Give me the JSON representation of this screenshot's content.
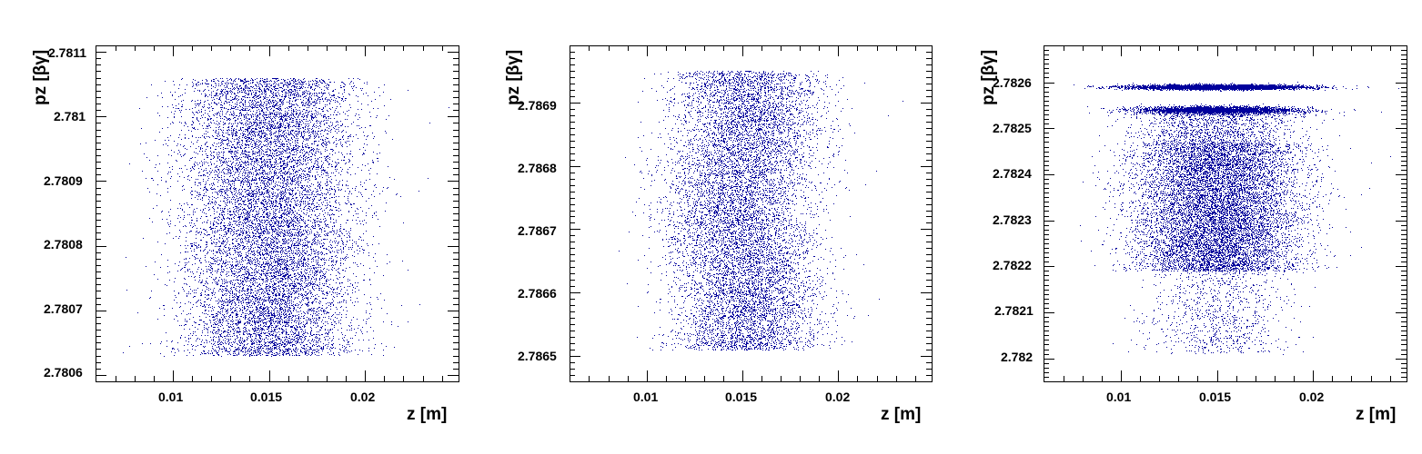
{
  "chart_data": [
    {
      "type": "scatter",
      "title": "",
      "xlabel": "z [m]",
      "ylabel": "pz [βγ]",
      "xlim": [
        0.00598,
        0.02487
      ],
      "ylim": [
        2.78059,
        2.78111
      ],
      "x_ticks": [
        "0.01",
        "0.015",
        "0.02"
      ],
      "x_tick_values": [
        0.01,
        0.015,
        0.02
      ],
      "y_ticks": [
        "2.7806",
        "2.7807",
        "2.7808",
        "2.7809",
        "2.781",
        "2.7811"
      ],
      "y_tick_values": [
        2.7806,
        2.7807,
        2.7808,
        2.7809,
        2.781,
        2.7811
      ],
      "grid": false,
      "marker_color": "#00009c",
      "distribution": {
        "core_z_range": [
          0.0115,
          0.0185
        ],
        "halo_z_range": [
          0.0085,
          0.0205
        ],
        "pz_range": [
          2.78063,
          2.78106
        ],
        "shape": "uniform rectangular band, dense central core with sparse edges in z"
      }
    },
    {
      "type": "scatter",
      "title": "",
      "xlabel": "z [m]",
      "ylabel": "pz [βγ]",
      "xlim": [
        0.00598,
        0.02487
      ],
      "ylim": [
        2.78646,
        2.78699
      ],
      "x_ticks": [
        "0.01",
        "0.015",
        "0.02"
      ],
      "x_tick_values": [
        0.01,
        0.015,
        0.02
      ],
      "y_ticks": [
        "2.7865",
        "2.7866",
        "2.7867",
        "2.7868",
        "2.7869"
      ],
      "y_tick_values": [
        2.7865,
        2.7866,
        2.7867,
        2.7868,
        2.7869
      ],
      "grid": false,
      "marker_color": "#00009c",
      "distribution": {
        "core_z_range": [
          0.012,
          0.018
        ],
        "halo_z_range": [
          0.0085,
          0.0205
        ],
        "pz_range": [
          2.78651,
          2.78695
        ],
        "shape": "rectangular band with slightly wavy edges"
      }
    },
    {
      "type": "scatter",
      "title": "",
      "xlabel": "z [m]",
      "ylabel": "pz [βγ]",
      "xlim": [
        0.00598,
        0.02487
      ],
      "ylim": [
        2.78195,
        2.78268
      ],
      "x_ticks": [
        "0.01",
        "0.015",
        "0.02"
      ],
      "x_tick_values": [
        0.01,
        0.015,
        0.02
      ],
      "y_ticks": [
        "2.782",
        "2.7821",
        "2.7822",
        "2.7823",
        "2.7824",
        "2.7825",
        "2.7826"
      ],
      "y_tick_values": [
        2.782,
        2.7821,
        2.7822,
        2.7823,
        2.7824,
        2.7825,
        2.7826
      ],
      "grid": false,
      "marker_color": "#00009c",
      "distribution": {
        "main_block": {
          "z_range": [
            0.0115,
            0.0185
          ],
          "pz_range": [
            2.78219,
            2.78247
          ]
        },
        "main_halo_z_range": [
          0.0093,
          0.0197
        ],
        "upper_band_1": {
          "z_range": [
            0.0095,
            0.0197
          ],
          "pz_center": 2.78259
        },
        "upper_band_2": {
          "z_range": [
            0.0105,
            0.0195
          ],
          "pz_center": 2.78254
        },
        "lower_tail": {
          "z_range": [
            0.0105,
            0.0195
          ],
          "pz_range": [
            2.78201,
            2.78219
          ]
        }
      }
    }
  ],
  "panels": [
    {
      "ylabel": "pz [βγ]",
      "xlabel": "z [m]",
      "x_ticks": [
        "0.01",
        "0.015",
        "0.02"
      ],
      "y_ticks": [
        "2.7806",
        "2.7807",
        "2.7808",
        "2.7809",
        "2.781",
        "2.7811"
      ]
    },
    {
      "ylabel": "pz [βγ]",
      "xlabel": "z [m]",
      "x_ticks": [
        "0.01",
        "0.015",
        "0.02"
      ],
      "y_ticks": [
        "2.7865",
        "2.7866",
        "2.7867",
        "2.7868",
        "2.7869"
      ]
    },
    {
      "ylabel": "pz [βγ]",
      "xlabel": "z [m]",
      "x_ticks": [
        "0.01",
        "0.015",
        "0.02"
      ],
      "y_ticks": [
        "2.782",
        "2.7821",
        "2.7822",
        "2.7823",
        "2.7824",
        "2.7825",
        "2.7826"
      ]
    }
  ],
  "colors": {
    "marker": "#00009c",
    "frame": "#000000",
    "background": "#ffffff"
  }
}
